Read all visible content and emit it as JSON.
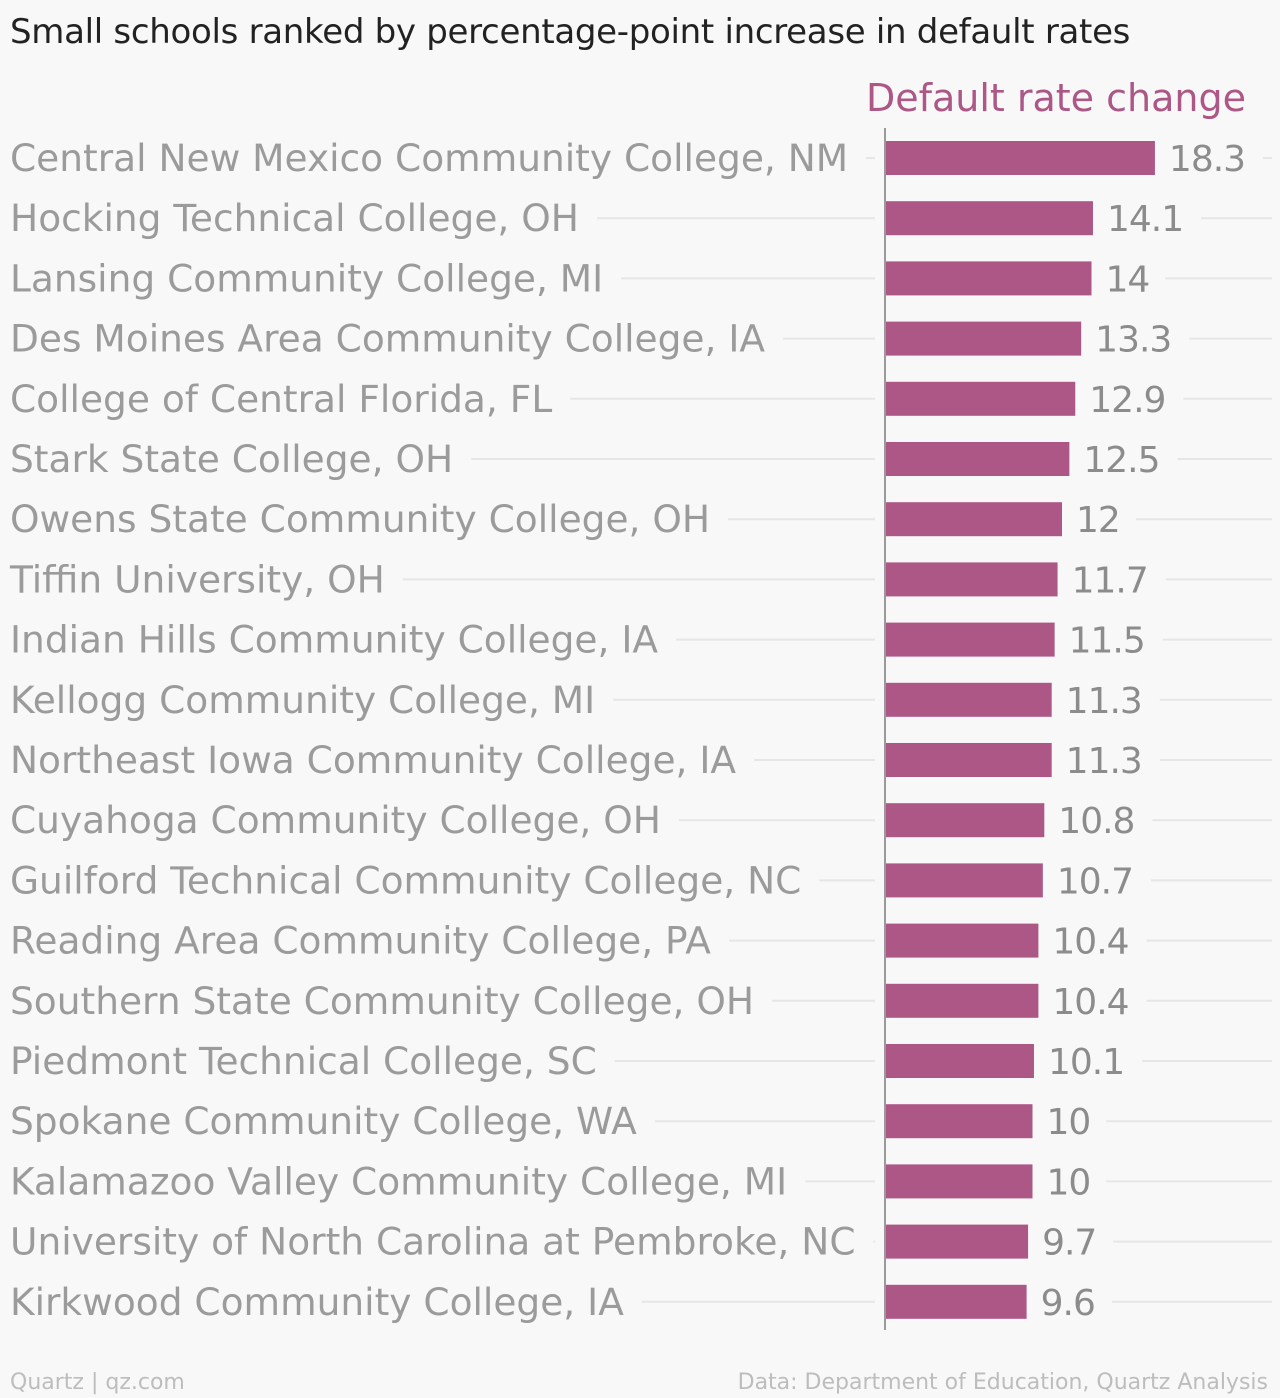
{
  "title": "Small schools ranked by percentage-point increase in default rates",
  "footer": {
    "source_left": "Quartz | qz.com",
    "source_right": "Data: Department of Education, Quartz Analysis"
  },
  "chart_data": {
    "type": "bar",
    "orientation": "horizontal",
    "series": [
      {
        "name": "Default rate change",
        "values": [
          18.3,
          14.1,
          14,
          13.3,
          12.9,
          12.5,
          12,
          11.7,
          11.5,
          11.3,
          11.3,
          10.8,
          10.7,
          10.4,
          10.4,
          10.1,
          10,
          10,
          9.7,
          9.6
        ],
        "labels": [
          "18.3",
          "14.1",
          "14",
          "13.3",
          "12.9",
          "12.5",
          "12",
          "11.7",
          "11.5",
          "11.3",
          "11.3",
          "10.8",
          "10.7",
          "10.4",
          "10.4",
          "10.1",
          "10",
          "10",
          "9.7",
          "9.6"
        ]
      }
    ],
    "categories": [
      "Central New Mexico Community College, NM",
      "Hocking Technical College, OH",
      "Lansing Community College, MI",
      "Des Moines Area Community College, IA",
      "College of Central Florida, FL",
      "Stark State College, OH",
      "Owens State Community College, OH",
      "Tiffin University, OH",
      "Indian Hills Community College, IA",
      "Kellogg Community College, MI",
      "Northeast Iowa Community College, IA",
      "Cuyahoga Community College, OH",
      "Guilford Technical Community College, NC",
      "Reading Area Community College, PA",
      "Southern State Community College, OH",
      "Piedmont Technical College, SC",
      "Spokane Community College, WA",
      "Kalamazoo Valley Community College, MI",
      "University of North Carolina at Pembroke, NC",
      "Kirkwood Community College, IA"
    ],
    "xlim": [
      0,
      20
    ],
    "grid": true,
    "colors": {
      "bar": "#ad5787",
      "category_text": "#9b9b9b",
      "value_text": "#8c8c8c",
      "gridline": "#e6e6e6",
      "axis": "#9a9a9a"
    }
  }
}
